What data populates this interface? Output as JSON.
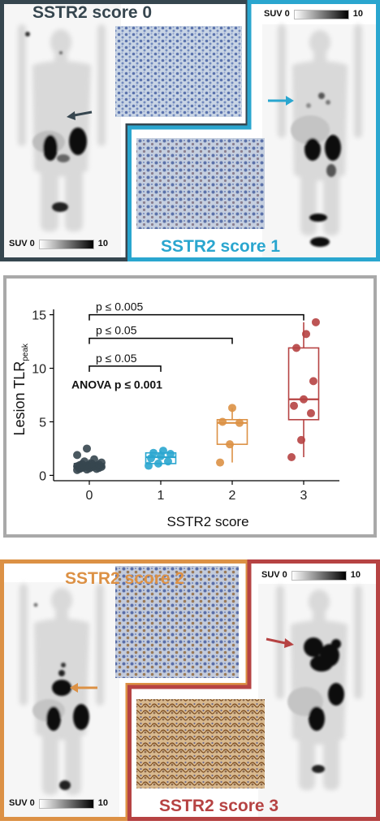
{
  "top_panel": {
    "score0_label": "SSTR2 score 0",
    "score1_label": "SSTR2 score 1",
    "suv_min": "SUV 0",
    "suv_max": "10",
    "color_score0": "#36464f",
    "color_score1": "#2aa6cf"
  },
  "bottom_panel": {
    "score2_label": "SSTR2 score 2",
    "score3_label": "SSTR2 score 3",
    "suv_min": "SUV 0",
    "suv_max": "10",
    "color_score2": "#dc9145",
    "color_score3": "#b64343"
  },
  "chart_data": {
    "type": "box",
    "xlabel": "SSTR2 score",
    "ylabel": "Lesion TLR",
    "ylabel_sub": "peak",
    "categories": [
      "0",
      "1",
      "2",
      "3"
    ],
    "yticks": [
      0,
      5,
      10,
      15
    ],
    "ylim": [
      -0.5,
      15.5
    ],
    "xlim": [
      -0.5,
      3.5
    ],
    "anova_label": "ANOVA p ≤ 0.001",
    "series": [
      {
        "category": "0",
        "color": "#36464f",
        "box": {
          "q1": 0.7,
          "median": 0.85,
          "q3": 1.1,
          "whisker_low": 0.5,
          "whisker_high": 1.5
        },
        "points": [
          0.5,
          0.55,
          0.6,
          0.6,
          0.65,
          0.7,
          0.7,
          0.75,
          0.8,
          0.8,
          0.85,
          0.85,
          0.9,
          0.9,
          0.95,
          1.0,
          1.0,
          1.05,
          1.1,
          1.2,
          1.3,
          1.5,
          1.9,
          2.5
        ]
      },
      {
        "category": "1",
        "color": "#2aa6cf",
        "box": {
          "q1": 1.1,
          "median": 1.7,
          "q3": 2.1,
          "whisker_low": 0.9,
          "whisker_high": 2.3
        },
        "points": [
          0.9,
          1.1,
          1.3,
          1.6,
          1.8,
          2.0,
          2.1,
          2.3
        ]
      },
      {
        "category": "2",
        "color": "#dc9145",
        "box": {
          "q1": 2.9,
          "median": 4.9,
          "q3": 5.2,
          "whisker_low": 1.2,
          "whisker_high": 6.3
        },
        "points": [
          1.2,
          2.9,
          4.9,
          5.0,
          6.3
        ]
      },
      {
        "category": "3",
        "color": "#b64343",
        "box": {
          "q1": 5.2,
          "median": 7.1,
          "q3": 11.9,
          "whisker_low": 1.7,
          "whisker_high": 14.3
        },
        "points": [
          1.7,
          3.3,
          5.8,
          6.5,
          7.1,
          8.8,
          11.9,
          13.2,
          14.3
        ]
      }
    ],
    "brackets": [
      {
        "from": "0",
        "to": "1",
        "y": 10.2,
        "label": "p ≤ 0.05"
      },
      {
        "from": "0",
        "to": "2",
        "y": 12.8,
        "label": "p ≤ 0.05"
      },
      {
        "from": "0",
        "to": "3",
        "y": 15.0,
        "label": "p ≤ 0.005"
      }
    ]
  }
}
